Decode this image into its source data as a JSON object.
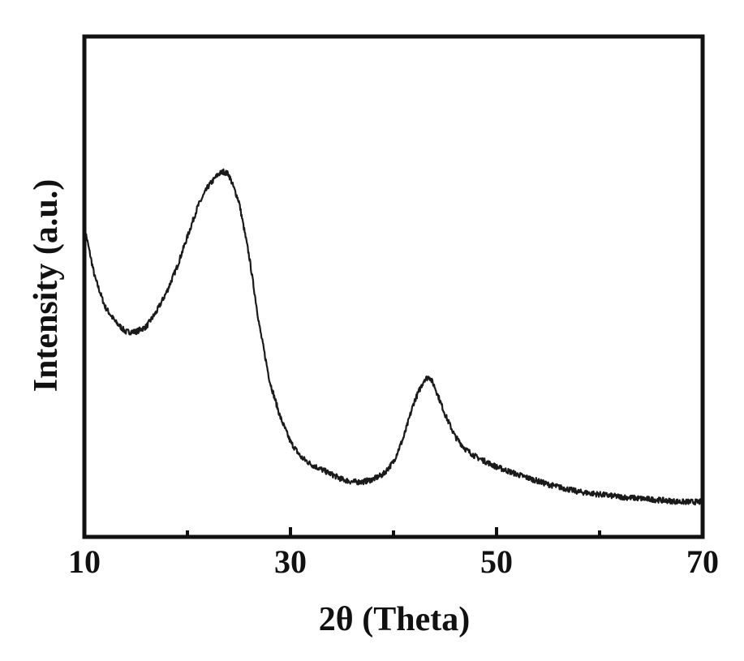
{
  "chart_data": {
    "type": "line",
    "title": "",
    "xlabel": "2θ (Theta)",
    "ylabel": "Intensity (a.u.)",
    "xlim": [
      10,
      70
    ],
    "ylim": [
      0,
      100
    ],
    "xticks": [
      10,
      20,
      30,
      40,
      50,
      60,
      70
    ],
    "xtick_labels": [
      "10",
      "30",
      "50",
      "70"
    ],
    "xtick_label_values": [
      10,
      30,
      50,
      70
    ],
    "yticks_shown": false,
    "grid": false,
    "legend": "none",
    "line_color": "#1a1a1a",
    "series": [
      {
        "x": [
          10,
          11,
          12,
          13,
          14,
          15,
          16,
          17,
          18,
          19,
          20,
          21,
          22,
          23,
          23.5,
          24,
          25,
          26,
          27,
          28,
          29,
          30,
          31,
          32,
          33,
          34,
          35,
          36,
          37,
          38,
          39,
          40,
          41,
          42,
          43,
          43.5,
          44,
          45,
          46,
          47,
          48,
          50,
          52,
          55,
          58,
          60,
          62,
          65,
          68,
          70
        ],
        "y": [
          62,
          52,
          46,
          43,
          41,
          41,
          42,
          45,
          49,
          54,
          60,
          66,
          70,
          72.5,
          73,
          72.5,
          67,
          56,
          42,
          31,
          24,
          19,
          16,
          14.5,
          13.5,
          12.5,
          11.5,
          11,
          11,
          11.5,
          12.5,
          15,
          20,
          27,
          31.5,
          32,
          30,
          24.5,
          20,
          17.5,
          16,
          14,
          12.5,
          10.5,
          9,
          8.5,
          8,
          7.5,
          7,
          7
        ]
      }
    ]
  }
}
